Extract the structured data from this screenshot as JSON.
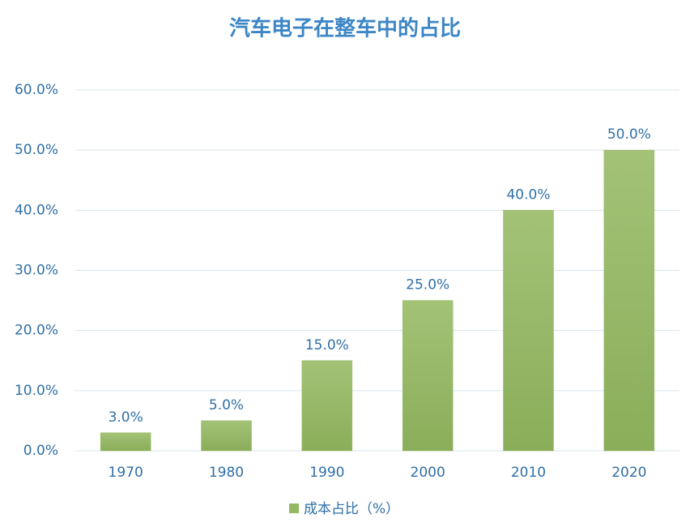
{
  "chart_data": {
    "type": "bar",
    "title": "汽车电子在整车中的占比",
    "categories": [
      "1970",
      "1980",
      "1990",
      "2000",
      "2010",
      "2020"
    ],
    "series": [
      {
        "name": "成本占比（%）",
        "color": "#95b865",
        "values": [
          3,
          5,
          15,
          25,
          40,
          50
        ],
        "value_labels": [
          "3.0%",
          "5.0%",
          "15.0%",
          "25.0%",
          "40.0%",
          "50.0%"
        ]
      }
    ],
    "ylim": [
      0,
      60
    ],
    "yticks": [
      {
        "value": 0,
        "label": "0.0%"
      },
      {
        "value": 10,
        "label": "10.0%"
      },
      {
        "value": 20,
        "label": "20.0%"
      },
      {
        "value": 30,
        "label": "30.0%"
      },
      {
        "value": 40,
        "label": "40.0%"
      },
      {
        "value": 50,
        "label": "50.0%"
      },
      {
        "value": 60,
        "label": "60.0%"
      }
    ],
    "grid": true,
    "legend": "bottom"
  }
}
